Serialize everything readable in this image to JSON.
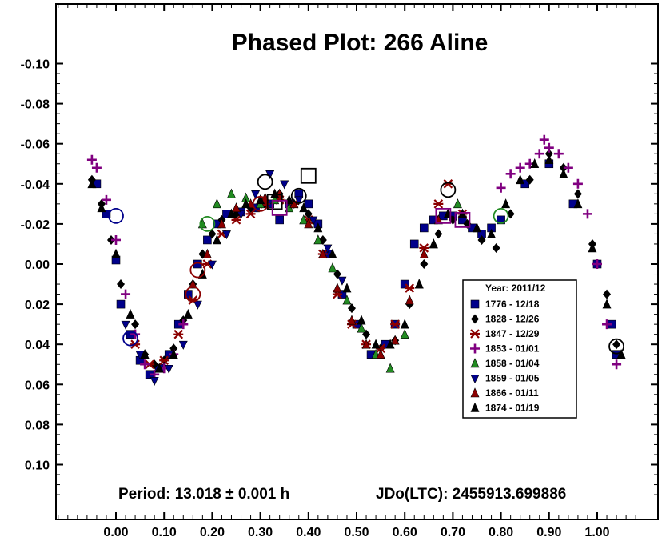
{
  "chart_data": {
    "type": "scatter",
    "title": "Phased Plot: 266 Aline",
    "xlabel": "",
    "ylabel": "",
    "xlim": [
      -0.13,
      1.12
    ],
    "ylim": [
      -0.125,
      0.125
    ],
    "y_inverted": true,
    "x_ticks": [
      "0.00",
      "0.10",
      "0.20",
      "0.30",
      "0.40",
      "0.50",
      "0.60",
      "0.70",
      "0.80",
      "0.90",
      "1.00"
    ],
    "y_ticks": [
      "-0.10",
      "-0.08",
      "-0.06",
      "-0.04",
      "-0.02",
      "0.00",
      "0.02",
      "0.04",
      "0.06",
      "0.08",
      "0.10"
    ],
    "grid": false,
    "legend_position": "right",
    "legend_title": "Year: 2011/12",
    "series": [
      {
        "name": "1776 - 12/18",
        "marker": "square",
        "color": "#00008b",
        "x": [
          -0.04,
          -0.02,
          0.0,
          0.01,
          0.03,
          0.05,
          0.07,
          0.09,
          0.11,
          0.13,
          0.15,
          0.17,
          0.19,
          0.21,
          0.23,
          0.26,
          0.29,
          0.32,
          0.34,
          0.36,
          0.38,
          0.4,
          0.42,
          0.44,
          0.47,
          0.5,
          0.53,
          0.56,
          0.58,
          0.6,
          0.62,
          0.64,
          0.66,
          0.68,
          0.7,
          0.72,
          0.74,
          0.76,
          0.78,
          0.8,
          0.85,
          0.9,
          0.95,
          1.0,
          1.03,
          1.04
        ],
        "y": [
          -0.04,
          -0.025,
          -0.002,
          0.02,
          0.035,
          0.048,
          0.055,
          0.052,
          0.045,
          0.03,
          0.015,
          0.0,
          -0.012,
          -0.02,
          -0.025,
          -0.026,
          -0.028,
          -0.03,
          -0.022,
          -0.03,
          -0.035,
          -0.03,
          -0.02,
          -0.005,
          0.015,
          0.03,
          0.045,
          0.04,
          0.03,
          0.01,
          -0.01,
          -0.018,
          -0.022,
          -0.024,
          -0.024,
          -0.022,
          -0.018,
          -0.015,
          -0.018,
          -0.022,
          -0.04,
          -0.05,
          -0.03,
          0.0,
          0.03,
          0.045
        ]
      },
      {
        "name": "1828 - 12/26",
        "marker": "diamond",
        "color": "#000000",
        "x": [
          -0.05,
          -0.03,
          -0.01,
          0.01,
          0.04,
          0.06,
          0.08,
          0.1,
          0.12,
          0.14,
          0.16,
          0.18,
          0.2,
          0.22,
          0.25,
          0.28,
          0.31,
          0.34,
          0.37,
          0.4,
          0.43,
          0.46,
          0.49,
          0.52,
          0.55,
          0.58,
          0.61,
          0.64,
          0.67,
          0.7,
          0.73,
          0.76,
          0.79,
          0.82,
          0.86,
          0.9,
          0.93,
          0.96,
          0.99,
          1.02,
          1.04
        ],
        "y": [
          -0.042,
          -0.03,
          -0.012,
          0.01,
          0.03,
          0.045,
          0.05,
          0.048,
          0.042,
          0.028,
          0.01,
          -0.005,
          -0.015,
          -0.022,
          -0.025,
          -0.028,
          -0.03,
          -0.035,
          -0.03,
          -0.025,
          -0.012,
          0.005,
          0.022,
          0.035,
          0.042,
          0.038,
          0.02,
          0.0,
          -0.015,
          -0.022,
          -0.02,
          -0.012,
          -0.008,
          -0.025,
          -0.042,
          -0.055,
          -0.048,
          -0.035,
          -0.01,
          0.015,
          0.04
        ]
      },
      {
        "name": "1847 - 12/29",
        "marker": "asterisk",
        "color": "#8b0000",
        "x": [
          0.04,
          0.07,
          0.1,
          0.13,
          0.16,
          0.19,
          0.22,
          0.25,
          0.28,
          0.31,
          0.34,
          0.37,
          0.4,
          0.43,
          0.46,
          0.49,
          0.52,
          0.55,
          0.58,
          0.61,
          0.64,
          0.67,
          0.69,
          0.72
        ],
        "y": [
          0.04,
          0.05,
          0.048,
          0.035,
          0.018,
          0.0,
          -0.015,
          -0.022,
          -0.025,
          -0.03,
          -0.032,
          -0.03,
          -0.022,
          -0.005,
          0.015,
          0.03,
          0.04,
          0.042,
          0.03,
          0.012,
          -0.008,
          -0.03,
          -0.04,
          -0.025
        ]
      },
      {
        "name": "1853 - 01/01",
        "marker": "plus",
        "color": "#800080",
        "x": [
          -0.05,
          -0.04,
          -0.02,
          0.0,
          0.02,
          0.04,
          0.06,
          0.08,
          0.1,
          0.12,
          0.14,
          0.8,
          0.82,
          0.84,
          0.86,
          0.88,
          0.89,
          0.9,
          0.92,
          0.94,
          0.96,
          0.98,
          1.0,
          1.02,
          1.04
        ],
        "y": [
          -0.052,
          -0.048,
          -0.032,
          -0.012,
          0.015,
          0.035,
          0.05,
          0.055,
          0.052,
          0.045,
          0.03,
          -0.038,
          -0.045,
          -0.048,
          -0.05,
          -0.055,
          -0.062,
          -0.058,
          -0.055,
          -0.048,
          -0.04,
          -0.025,
          0.0,
          0.03,
          0.05
        ]
      },
      {
        "name": "1858 - 01/04",
        "marker": "triangle-up",
        "color": "#228b22",
        "x": [
          0.18,
          0.21,
          0.24,
          0.27,
          0.3,
          0.33,
          0.36,
          0.39,
          0.42,
          0.45,
          0.48,
          0.51,
          0.54,
          0.57,
          0.6,
          0.63,
          0.66,
          0.69,
          0.71
        ],
        "y": [
          -0.02,
          -0.03,
          -0.035,
          -0.033,
          -0.03,
          -0.032,
          -0.028,
          -0.022,
          -0.012,
          0.002,
          0.018,
          0.032,
          0.045,
          0.052,
          0.035,
          0.01,
          -0.01,
          -0.025,
          -0.03
        ]
      },
      {
        "name": "1859 - 01/05",
        "marker": "triangle-down",
        "color": "#00008b",
        "x": [
          0.02,
          0.05,
          0.08,
          0.11,
          0.14,
          0.17,
          0.2,
          0.23,
          0.26,
          0.29,
          0.32,
          0.35,
          0.38,
          0.41,
          0.44,
          0.47
        ],
        "y": [
          0.03,
          0.045,
          0.058,
          0.052,
          0.04,
          0.02,
          0.0,
          -0.015,
          -0.025,
          -0.035,
          -0.045,
          -0.04,
          -0.032,
          -0.022,
          -0.008,
          0.008
        ]
      },
      {
        "name": "1866 - 01/11",
        "marker": "triangle-up",
        "color": "#8b0000",
        "x": [
          0.16,
          0.19,
          0.22,
          0.25,
          0.28,
          0.31,
          0.34,
          0.37,
          0.4,
          0.43,
          0.46,
          0.49,
          0.52,
          0.55,
          0.58,
          0.61,
          0.64,
          0.67
        ],
        "y": [
          0.01,
          -0.005,
          -0.02,
          -0.028,
          -0.03,
          -0.033,
          -0.035,
          -0.03,
          -0.02,
          -0.005,
          0.012,
          0.028,
          0.04,
          0.045,
          0.038,
          0.018,
          -0.005,
          -0.022
        ]
      },
      {
        "name": "1874 - 01/19",
        "marker": "triangle-up",
        "color": "#000000",
        "x": [
          -0.05,
          -0.03,
          0.0,
          0.03,
          0.06,
          0.09,
          0.12,
          0.15,
          0.18,
          0.21,
          0.24,
          0.27,
          0.3,
          0.33,
          0.36,
          0.39,
          0.42,
          0.45,
          0.48,
          0.51,
          0.54,
          0.57,
          0.6,
          0.63,
          0.66,
          0.69,
          0.72,
          0.75,
          0.78,
          0.81,
          0.84,
          0.87,
          0.9,
          0.93,
          0.96,
          0.99,
          1.02,
          1.05
        ],
        "y": [
          -0.04,
          -0.028,
          -0.005,
          0.025,
          0.045,
          0.052,
          0.045,
          0.025,
          0.005,
          -0.012,
          -0.025,
          -0.03,
          -0.032,
          -0.035,
          -0.032,
          -0.028,
          -0.018,
          -0.005,
          0.012,
          0.028,
          0.04,
          0.04,
          0.03,
          0.01,
          -0.01,
          -0.025,
          -0.025,
          -0.018,
          -0.015,
          -0.03,
          -0.042,
          -0.05,
          -0.052,
          -0.045,
          -0.03,
          -0.008,
          0.02,
          0.045
        ]
      }
    ],
    "highlighted": [
      {
        "x": 0.0,
        "y": -0.024,
        "symbol": "circle",
        "color": "#00008b"
      },
      {
        "x": 0.03,
        "y": 0.037,
        "symbol": "circle",
        "color": "#00008b"
      },
      {
        "x": 0.16,
        "y": 0.015,
        "symbol": "circle",
        "color": "#8b0000"
      },
      {
        "x": 0.17,
        "y": 0.003,
        "symbol": "circle",
        "color": "#8b0000"
      },
      {
        "x": 0.19,
        "y": -0.02,
        "symbol": "circle",
        "color": "#228b22"
      },
      {
        "x": 0.31,
        "y": -0.041,
        "symbol": "circle",
        "color": "#000000"
      },
      {
        "x": 0.3,
        "y": -0.03,
        "symbol": "circle",
        "color": "#8b0000"
      },
      {
        "x": 0.33,
        "y": -0.031,
        "symbol": "square",
        "color": "#000000"
      },
      {
        "x": 0.34,
        "y": -0.028,
        "symbol": "square",
        "color": "#800080"
      },
      {
        "x": 0.4,
        "y": -0.044,
        "symbol": "square",
        "color": "#000000"
      },
      {
        "x": 0.38,
        "y": -0.034,
        "symbol": "circle",
        "color": "#000000"
      },
      {
        "x": 0.69,
        "y": -0.037,
        "symbol": "circle",
        "color": "#000000"
      },
      {
        "x": 0.68,
        "y": -0.024,
        "symbol": "square",
        "color": "#800080"
      },
      {
        "x": 0.72,
        "y": -0.022,
        "symbol": "square",
        "color": "#800080"
      },
      {
        "x": 0.8,
        "y": -0.024,
        "symbol": "circle",
        "color": "#228b22"
      },
      {
        "x": 1.04,
        "y": 0.041,
        "symbol": "circle",
        "color": "#000000"
      }
    ],
    "footer": {
      "period": "Period: 13.018 ± 0.001 h",
      "jdo": "JDo(LTC): 2455913.699886"
    }
  }
}
